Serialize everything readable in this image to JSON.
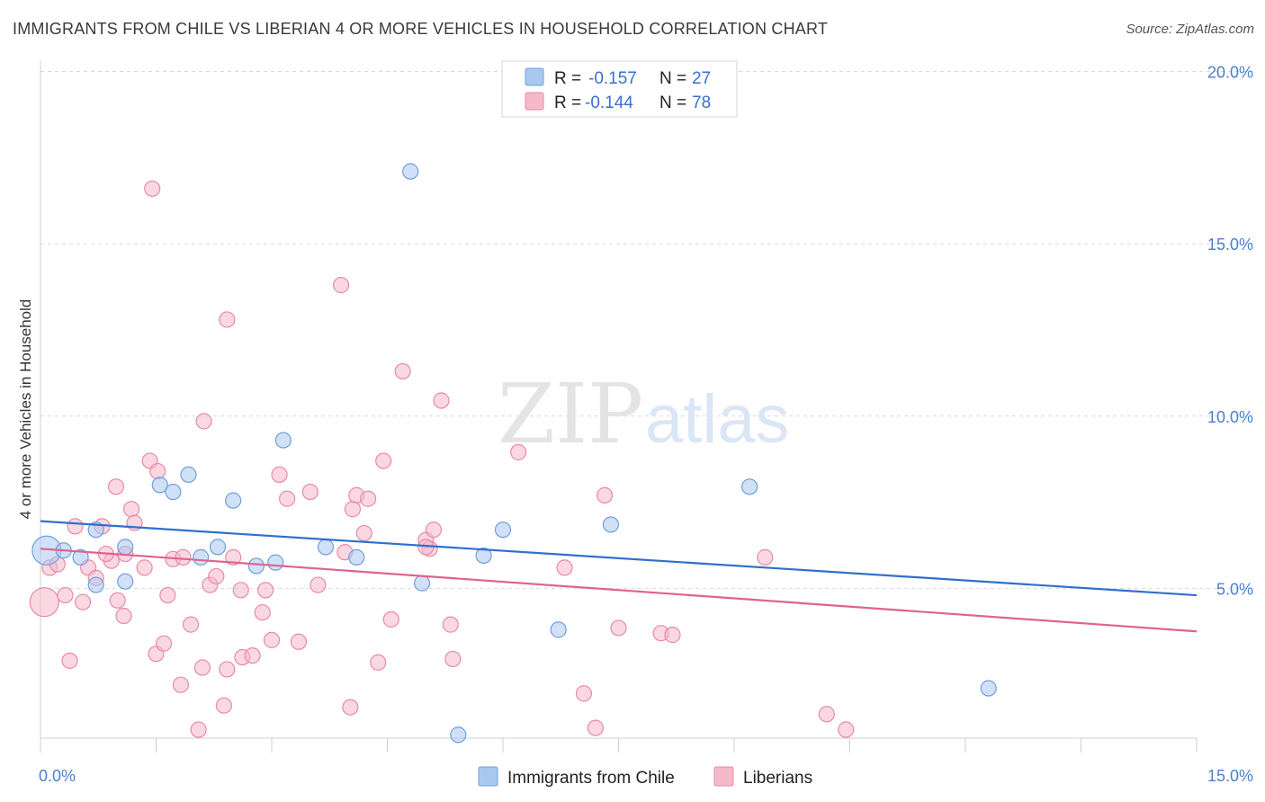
{
  "title": "IMMIGRANTS FROM CHILE VS LIBERIAN 4 OR MORE VEHICLES IN HOUSEHOLD CORRELATION CHART",
  "source": "Source: ZipAtlas.com",
  "watermark": {
    "zip": "ZIP",
    "atlas": "atlas"
  },
  "legend": {
    "rows": [
      {
        "r_label": "R =",
        "r_value": "-0.157",
        "n_label": "N =",
        "n_value": "27",
        "color": "#a9c8f0"
      },
      {
        "r_label": "R =",
        "r_value": "-0.144",
        "n_label": "N =",
        "n_value": "78",
        "color": "#f6b8cb"
      }
    ]
  },
  "colors": {
    "blue_fill": "#a9c8f0",
    "blue_stroke": "#6f9fdc",
    "blue_line": "#2f6fcf",
    "pink_fill": "#f6b8cb",
    "pink_stroke": "#e88aa8",
    "pink_line": "#e0628f",
    "tick_label": "#4a7fd0",
    "grid": "#d9d9d9"
  },
  "chart_data": {
    "type": "scatter",
    "xlabel": "",
    "ylabel": "4 or more Vehicles in Household",
    "xlim": [
      0,
      15
    ],
    "ylim": [
      0,
      20.5
    ],
    "x_ticks": [
      {
        "value": 0,
        "label": "0.0%"
      },
      {
        "value": 15,
        "label": "15.0%"
      }
    ],
    "y_ticks": [
      {
        "value": 5,
        "label": "5.0%"
      },
      {
        "value": 10,
        "label": "10.0%"
      },
      {
        "value": 15,
        "label": "15.0%"
      },
      {
        "value": 20,
        "label": "20.0%"
      }
    ],
    "grid": true,
    "legend_position": "top-center",
    "series": [
      {
        "name": "Immigrants from Chile",
        "color": "#a9c8f0",
        "trend": {
          "x": [
            0,
            15
          ],
          "y": [
            6.95,
            4.8
          ]
        },
        "points": [
          {
            "x": 0.08,
            "y": 6.1,
            "big": true
          },
          {
            "x": 0.3,
            "y": 6.1
          },
          {
            "x": 0.52,
            "y": 5.9
          },
          {
            "x": 0.72,
            "y": 6.7
          },
          {
            "x": 0.72,
            "y": 5.1
          },
          {
            "x": 1.1,
            "y": 6.2
          },
          {
            "x": 1.1,
            "y": 5.2
          },
          {
            "x": 1.55,
            "y": 8.0
          },
          {
            "x": 1.72,
            "y": 7.8
          },
          {
            "x": 1.92,
            "y": 8.3
          },
          {
            "x": 2.08,
            "y": 5.9
          },
          {
            "x": 2.3,
            "y": 6.2
          },
          {
            "x": 2.5,
            "y": 7.55
          },
          {
            "x": 2.8,
            "y": 5.65
          },
          {
            "x": 3.05,
            "y": 5.75
          },
          {
            "x": 3.15,
            "y": 9.3
          },
          {
            "x": 3.7,
            "y": 6.2
          },
          {
            "x": 4.1,
            "y": 5.9
          },
          {
            "x": 4.8,
            "y": 17.1
          },
          {
            "x": 4.95,
            "y": 5.15
          },
          {
            "x": 5.42,
            "y": 0.75
          },
          {
            "x": 5.75,
            "y": 5.95
          },
          {
            "x": 6.0,
            "y": 6.7
          },
          {
            "x": 6.72,
            "y": 3.8
          },
          {
            "x": 7.4,
            "y": 6.85
          },
          {
            "x": 9.2,
            "y": 7.95
          },
          {
            "x": 12.3,
            "y": 2.1
          }
        ]
      },
      {
        "name": "Liberians",
        "color": "#f6b8cb",
        "trend": {
          "x": [
            0,
            15
          ],
          "y": [
            6.15,
            3.75
          ]
        },
        "points": [
          {
            "x": 0.05,
            "y": 4.6,
            "big": true
          },
          {
            "x": 0.12,
            "y": 5.6
          },
          {
            "x": 0.22,
            "y": 5.7
          },
          {
            "x": 0.32,
            "y": 4.8
          },
          {
            "x": 0.38,
            "y": 2.9
          },
          {
            "x": 0.45,
            "y": 6.8
          },
          {
            "x": 0.55,
            "y": 4.6
          },
          {
            "x": 0.62,
            "y": 5.6
          },
          {
            "x": 0.72,
            "y": 5.3
          },
          {
            "x": 0.8,
            "y": 6.8
          },
          {
            "x": 0.92,
            "y": 5.8
          },
          {
            "x": 0.98,
            "y": 7.95
          },
          {
            "x": 1.0,
            "y": 4.65
          },
          {
            "x": 1.08,
            "y": 4.2
          },
          {
            "x": 1.18,
            "y": 7.3
          },
          {
            "x": 1.22,
            "y": 6.9
          },
          {
            "x": 1.35,
            "y": 5.6
          },
          {
            "x": 1.42,
            "y": 8.7
          },
          {
            "x": 1.5,
            "y": 3.1
          },
          {
            "x": 1.52,
            "y": 8.4
          },
          {
            "x": 1.6,
            "y": 3.4
          },
          {
            "x": 1.65,
            "y": 4.8
          },
          {
            "x": 1.72,
            "y": 5.85
          },
          {
            "x": 1.82,
            "y": 2.2
          },
          {
            "x": 1.85,
            "y": 5.9
          },
          {
            "x": 1.95,
            "y": 3.95
          },
          {
            "x": 2.05,
            "y": 0.9
          },
          {
            "x": 2.1,
            "y": 2.7
          },
          {
            "x": 2.12,
            "y": 9.85
          },
          {
            "x": 2.2,
            "y": 5.1
          },
          {
            "x": 2.28,
            "y": 5.35
          },
          {
            "x": 2.38,
            "y": 1.6
          },
          {
            "x": 2.42,
            "y": 2.65
          },
          {
            "x": 2.5,
            "y": 5.9
          },
          {
            "x": 2.6,
            "y": 4.95
          },
          {
            "x": 2.62,
            "y": 3.0
          },
          {
            "x": 2.75,
            "y": 3.05
          },
          {
            "x": 2.88,
            "y": 4.3
          },
          {
            "x": 2.92,
            "y": 4.95
          },
          {
            "x": 3.0,
            "y": 3.5
          },
          {
            "x": 3.1,
            "y": 8.3
          },
          {
            "x": 3.2,
            "y": 7.6
          },
          {
            "x": 3.35,
            "y": 3.45
          },
          {
            "x": 3.5,
            "y": 7.8
          },
          {
            "x": 3.6,
            "y": 5.1
          },
          {
            "x": 3.9,
            "y": 13.8
          },
          {
            "x": 3.95,
            "y": 6.05
          },
          {
            "x": 4.02,
            "y": 1.55
          },
          {
            "x": 4.05,
            "y": 7.3
          },
          {
            "x": 4.1,
            "y": 7.7
          },
          {
            "x": 4.2,
            "y": 6.6
          },
          {
            "x": 4.25,
            "y": 7.6
          },
          {
            "x": 4.38,
            "y": 2.85
          },
          {
            "x": 4.45,
            "y": 8.7
          },
          {
            "x": 4.55,
            "y": 4.1
          },
          {
            "x": 4.7,
            "y": 11.3
          },
          {
            "x": 5.0,
            "y": 6.4
          },
          {
            "x": 5.05,
            "y": 6.15
          },
          {
            "x": 5.1,
            "y": 6.7
          },
          {
            "x": 5.2,
            "y": 10.45
          },
          {
            "x": 5.32,
            "y": 3.95
          },
          {
            "x": 5.35,
            "y": 2.95
          },
          {
            "x": 6.2,
            "y": 8.95
          },
          {
            "x": 6.8,
            "y": 5.6
          },
          {
            "x": 7.05,
            "y": 1.95
          },
          {
            "x": 7.2,
            "y": 0.95
          },
          {
            "x": 7.32,
            "y": 7.7
          },
          {
            "x": 7.5,
            "y": 3.85
          },
          {
            "x": 8.05,
            "y": 3.7
          },
          {
            "x": 8.2,
            "y": 3.65
          },
          {
            "x": 9.4,
            "y": 5.9
          },
          {
            "x": 10.2,
            "y": 1.35
          },
          {
            "x": 10.45,
            "y": 0.9
          },
          {
            "x": 1.45,
            "y": 16.6
          },
          {
            "x": 2.42,
            "y": 12.8
          },
          {
            "x": 1.1,
            "y": 6.0
          },
          {
            "x": 0.85,
            "y": 6.0
          },
          {
            "x": 5.0,
            "y": 6.2
          }
        ]
      }
    ]
  },
  "bottom_legend": [
    {
      "label": "Immigrants from Chile",
      "color": "#a9c8f0"
    },
    {
      "label": "Liberians",
      "color": "#f6b8cb"
    }
  ]
}
